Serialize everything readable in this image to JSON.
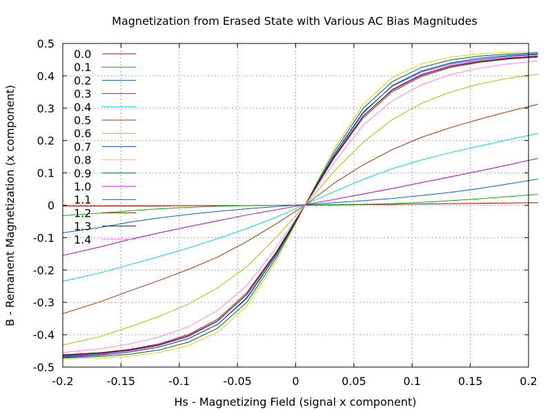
{
  "chart_data": {
    "type": "line",
    "title": "Magnetization from Erased State with Various AC Bias Magnitudes",
    "xlabel": "Hs - Magnetizing Field (signal x component)",
    "ylabel": "B - Remanent Magnetization (x component)",
    "xlim": [
      -0.2,
      0.2
    ],
    "ylim": [
      -0.5,
      0.5
    ],
    "x_ticks": [
      "-0.2",
      "-0.15",
      "-0.1",
      "-0.05",
      "0",
      "0.05",
      "0.1",
      "0.15",
      "0.2"
    ],
    "y_ticks": [
      "-0.5",
      "-0.4",
      "-0.3",
      "-0.2",
      "-0.1",
      "0",
      "0.1",
      "0.2",
      "0.3",
      "0.4",
      "0.5"
    ],
    "grid": true,
    "legend_position": "top-left",
    "x": [
      -0.2,
      -0.175,
      -0.15,
      -0.125,
      -0.1,
      -0.075,
      -0.05,
      -0.025,
      0.0,
      0.025,
      0.05,
      0.075,
      0.1,
      0.125,
      0.15,
      0.175,
      0.2
    ],
    "series": [
      {
        "name": "0.0",
        "color": "#c00000",
        "values": [
          -0.002,
          -0.002,
          -0.002,
          -0.002,
          -0.001,
          -0.001,
          -0.001,
          0.0,
          0.0,
          0.001,
          0.002,
          0.003,
          0.004,
          0.005,
          0.006,
          0.007,
          0.008
        ]
      },
      {
        "name": "0.1",
        "color": "#00b000",
        "values": [
          -0.032,
          -0.024,
          -0.017,
          -0.011,
          -0.006,
          -0.003,
          -0.001,
          0.0,
          0.001,
          0.002,
          0.003,
          0.005,
          0.009,
          0.014,
          0.02,
          0.027,
          0.034
        ]
      },
      {
        "name": "0.2",
        "color": "#0060c0",
        "values": [
          -0.085,
          -0.068,
          -0.052,
          -0.039,
          -0.028,
          -0.019,
          -0.011,
          -0.004,
          0.002,
          0.008,
          0.014,
          0.021,
          0.03,
          0.04,
          0.052,
          0.066,
          0.081
        ]
      },
      {
        "name": "0.3",
        "color": "#b000b0",
        "values": [
          -0.155,
          -0.128,
          -0.105,
          -0.085,
          -0.066,
          -0.048,
          -0.03,
          -0.014,
          0.002,
          0.018,
          0.035,
          0.052,
          0.07,
          0.088,
          0.106,
          0.125,
          0.145
        ]
      },
      {
        "name": "0.4",
        "color": "#00d0e0",
        "values": [
          -0.235,
          -0.208,
          -0.183,
          -0.158,
          -0.132,
          -0.103,
          -0.072,
          -0.037,
          0.002,
          0.042,
          0.08,
          0.113,
          0.14,
          0.163,
          0.183,
          0.203,
          0.222
        ]
      },
      {
        "name": "0.5",
        "color": "#a03000",
        "values": [
          -0.335,
          -0.297,
          -0.264,
          -0.232,
          -0.198,
          -0.16,
          -0.112,
          -0.058,
          0.0,
          0.068,
          0.125,
          0.172,
          0.21,
          0.24,
          0.266,
          0.29,
          0.312
        ]
      },
      {
        "name": "0.6",
        "color": "#c0b000",
        "values": [
          -0.432,
          -0.405,
          -0.375,
          -0.343,
          -0.305,
          -0.255,
          -0.19,
          -0.1,
          0.0,
          0.105,
          0.195,
          0.265,
          0.315,
          0.35,
          0.375,
          0.393,
          0.405
        ]
      },
      {
        "name": "0.7",
        "color": "#0050d0",
        "values": [
          -0.47,
          -0.463,
          -0.453,
          -0.438,
          -0.412,
          -0.368,
          -0.285,
          -0.155,
          0.0,
          0.155,
          0.285,
          0.37,
          0.415,
          0.44,
          0.455,
          0.463,
          0.468
        ]
      },
      {
        "name": "0.8",
        "color": "#e8d000",
        "values": [
          -0.475,
          -0.472,
          -0.466,
          -0.455,
          -0.433,
          -0.392,
          -0.312,
          -0.175,
          0.0,
          0.175,
          0.312,
          0.395,
          0.437,
          0.458,
          0.468,
          0.472,
          0.474
        ]
      },
      {
        "name": "0.9",
        "color": "#006030",
        "values": [
          -0.472,
          -0.467,
          -0.46,
          -0.447,
          -0.423,
          -0.38,
          -0.3,
          -0.165,
          0.0,
          0.165,
          0.3,
          0.382,
          0.426,
          0.449,
          0.461,
          0.467,
          0.471
        ]
      },
      {
        "name": "1.0",
        "color": "#ff00ff",
        "values": [
          -0.466,
          -0.459,
          -0.449,
          -0.433,
          -0.405,
          -0.358,
          -0.275,
          -0.148,
          0.0,
          0.148,
          0.275,
          0.358,
          0.405,
          0.432,
          0.447,
          0.456,
          0.462
        ]
      },
      {
        "name": "1.1",
        "color": "#1050a0",
        "values": [
          -0.468,
          -0.462,
          -0.453,
          -0.438,
          -0.412,
          -0.368,
          -0.288,
          -0.157,
          0.0,
          0.157,
          0.288,
          0.368,
          0.412,
          0.437,
          0.451,
          0.46,
          0.466
        ]
      },
      {
        "name": "1.2",
        "color": "#8b2000",
        "values": [
          -0.462,
          -0.455,
          -0.445,
          -0.428,
          -0.399,
          -0.352,
          -0.27,
          -0.146,
          0.0,
          0.146,
          0.27,
          0.351,
          0.398,
          0.426,
          0.442,
          0.452,
          0.458
        ]
      },
      {
        "name": "1.3",
        "color": "#202020",
        "values": [
          -0.464,
          -0.457,
          -0.447,
          -0.431,
          -0.403,
          -0.357,
          -0.276,
          -0.15,
          0.0,
          0.15,
          0.276,
          0.356,
          0.402,
          0.429,
          0.444,
          0.454,
          0.46
        ]
      },
      {
        "name": "1.4",
        "color": "#ff80ff",
        "values": [
          -0.455,
          -0.443,
          -0.428,
          -0.407,
          -0.375,
          -0.325,
          -0.248,
          -0.132,
          0.0,
          0.132,
          0.248,
          0.323,
          0.372,
          0.404,
          0.424,
          0.437,
          0.446
        ]
      }
    ]
  }
}
